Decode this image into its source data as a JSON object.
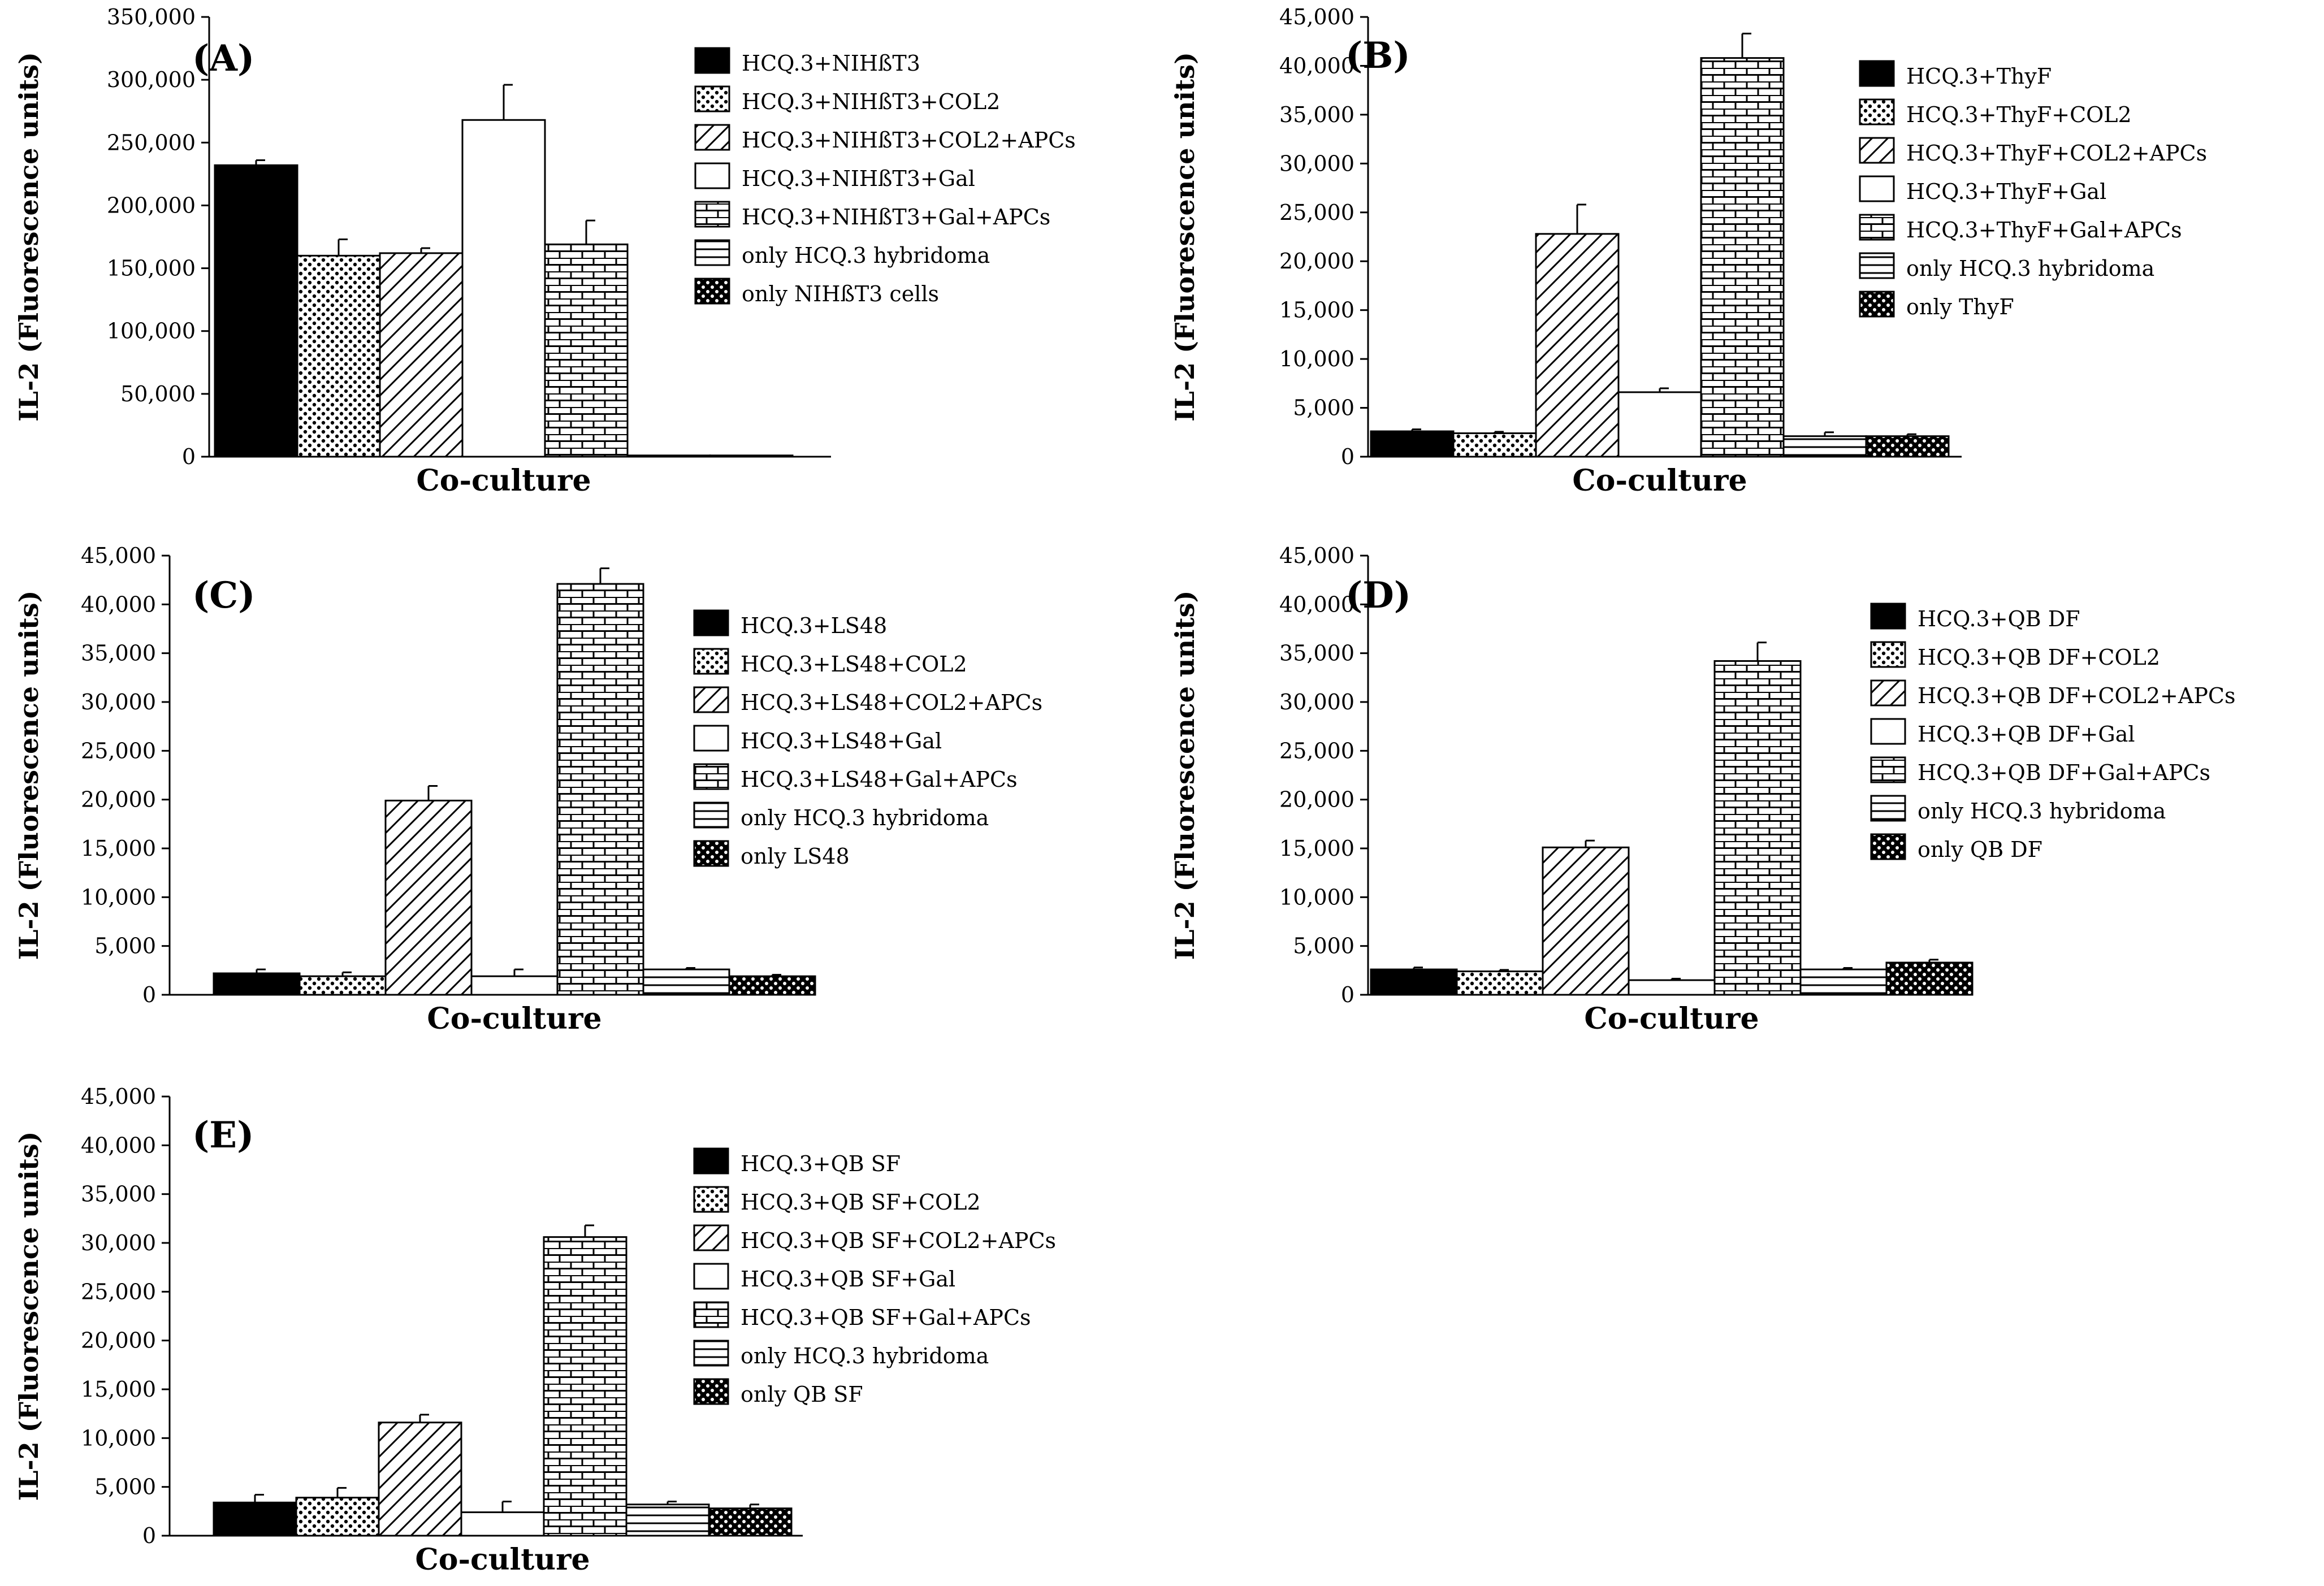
{
  "chart_data": [
    {
      "type": "bar",
      "panel_label": "(A)",
      "xlabel": "Co-culture",
      "ylabel": "IL-2 (Fluorescence units)",
      "ylim": [
        0,
        350000
      ],
      "yticks": [
        "0",
        "50,000",
        "100,000",
        "150,000",
        "200,000",
        "250,000",
        "300,000",
        "350,000"
      ],
      "series": [
        {
          "name": "HCQ.3+NIHßT3",
          "value": 232000,
          "error": 4000,
          "pattern": "black"
        },
        {
          "name": "HCQ.3+NIHßT3+COL2",
          "value": 160000,
          "error": 13000,
          "pattern": "dots"
        },
        {
          "name": "HCQ.3+NIHßT3+COL2+APCs",
          "value": 162000,
          "error": 4000,
          "pattern": "diag"
        },
        {
          "name": "HCQ.3+NIHßT3+Gal",
          "value": 268000,
          "error": 28000,
          "pattern": "white"
        },
        {
          "name": "HCQ.3+NIHßT3+Gal+APCs",
          "value": 169000,
          "error": 19000,
          "pattern": "brick"
        },
        {
          "name": "only HCQ.3 hybridoma",
          "value": 1000,
          "error": 0,
          "pattern": "hlines"
        },
        {
          "name": "only NIHßT3 cells",
          "value": 1000,
          "error": 0,
          "pattern": "check"
        }
      ]
    },
    {
      "type": "bar",
      "panel_label": "(B)",
      "xlabel": "Co-culture",
      "ylabel": "IL-2 (Fluorescence units)",
      "ylim": [
        0,
        45000
      ],
      "yticks": [
        "0",
        "5,000",
        "10,000",
        "15,000",
        "20,000",
        "25,000",
        "30,000",
        "35,000",
        "40,000",
        "45,000"
      ],
      "series": [
        {
          "name": "HCQ.3+ThyF",
          "value": 2600,
          "error": 200,
          "pattern": "black"
        },
        {
          "name": "HCQ.3+ThyF+COL2",
          "value": 2400,
          "error": 150,
          "pattern": "dots"
        },
        {
          "name": "HCQ.3+ThyF+COL2+APCs",
          "value": 22800,
          "error": 3000,
          "pattern": "diag"
        },
        {
          "name": "HCQ.3+ThyF+Gal",
          "value": 6600,
          "error": 400,
          "pattern": "white"
        },
        {
          "name": "HCQ.3+ThyF+Gal+APCs",
          "value": 40800,
          "error": 2500,
          "pattern": "brick"
        },
        {
          "name": "only HCQ.3 hybridoma",
          "value": 2100,
          "error": 400,
          "pattern": "hlines"
        },
        {
          "name": "only ThyF",
          "value": 2100,
          "error": 200,
          "pattern": "check"
        }
      ]
    },
    {
      "type": "bar",
      "panel_label": "(C)",
      "xlabel": "Co-culture",
      "ylabel": "IL-2 (Fluorescence units)",
      "ylim": [
        0,
        45000
      ],
      "yticks": [
        "0",
        "5,000",
        "10,000",
        "15,000",
        "20,000",
        "25,000",
        "30,000",
        "35,000",
        "40,000",
        "45,000"
      ],
      "series": [
        {
          "name": "HCQ.3+LS48",
          "value": 2200,
          "error": 400,
          "pattern": "black"
        },
        {
          "name": "HCQ.3+LS48+COL2",
          "value": 1900,
          "error": 400,
          "pattern": "dots"
        },
        {
          "name": "HCQ.3+LS48+COL2+APCs",
          "value": 19900,
          "error": 1500,
          "pattern": "diag"
        },
        {
          "name": "HCQ.3+LS48+Gal",
          "value": 1900,
          "error": 700,
          "pattern": "white"
        },
        {
          "name": "HCQ.3+LS48+Gal+APCs",
          "value": 42100,
          "error": 1600,
          "pattern": "brick"
        },
        {
          "name": "only HCQ.3 hybridoma",
          "value": 2600,
          "error": 150,
          "pattern": "hlines"
        },
        {
          "name": "only LS48",
          "value": 1900,
          "error": 150,
          "pattern": "check"
        }
      ]
    },
    {
      "type": "bar",
      "panel_label": "(D)",
      "xlabel": "Co-culture",
      "ylabel": "IL-2 (Fluorescence units)",
      "ylim": [
        0,
        45000
      ],
      "yticks": [
        "0",
        "5,000",
        "10,000",
        "15,000",
        "20,000",
        "25,000",
        "30,000",
        "35,000",
        "40,000",
        "45,000"
      ],
      "series": [
        {
          "name": "HCQ.3+QB DF",
          "value": 2600,
          "error": 200,
          "pattern": "black"
        },
        {
          "name": "HCQ.3+QB DF+COL2",
          "value": 2400,
          "error": 150,
          "pattern": "dots"
        },
        {
          "name": "HCQ.3+QB DF+COL2+APCs",
          "value": 15100,
          "error": 700,
          "pattern": "diag"
        },
        {
          "name": "HCQ.3+QB DF+Gal",
          "value": 1500,
          "error": 150,
          "pattern": "white"
        },
        {
          "name": "HCQ.3+QB DF+Gal+APCs",
          "value": 34200,
          "error": 1900,
          "pattern": "brick"
        },
        {
          "name": "only HCQ.3 hybridoma",
          "value": 2600,
          "error": 150,
          "pattern": "hlines"
        },
        {
          "name": "only QB DF",
          "value": 3300,
          "error": 300,
          "pattern": "check"
        }
      ]
    },
    {
      "type": "bar",
      "panel_label": "(E)",
      "xlabel": "Co-culture",
      "ylabel": "IL-2 (Fluorescence units)",
      "ylim": [
        0,
        45000
      ],
      "yticks": [
        "0",
        "5,000",
        "10,000",
        "15,000",
        "20,000",
        "25,000",
        "30,000",
        "35,000",
        "40,000",
        "45,000"
      ],
      "series": [
        {
          "name": "HCQ.3+QB SF",
          "value": 3400,
          "error": 800,
          "pattern": "black"
        },
        {
          "name": "HCQ.3+QB SF+COL2",
          "value": 3900,
          "error": 1000,
          "pattern": "dots"
        },
        {
          "name": "HCQ.3+QB SF+COL2+APCs",
          "value": 11600,
          "error": 800,
          "pattern": "diag"
        },
        {
          "name": "HCQ.3+QB SF+Gal",
          "value": 2400,
          "error": 1100,
          "pattern": "white"
        },
        {
          "name": "HCQ.3+QB SF+Gal+APCs",
          "value": 30600,
          "error": 1200,
          "pattern": "brick"
        },
        {
          "name": "only HCQ.3 hybridoma",
          "value": 3200,
          "error": 300,
          "pattern": "hlines"
        },
        {
          "name": "only QB SF",
          "value": 2800,
          "error": 400,
          "pattern": "check"
        }
      ]
    }
  ]
}
